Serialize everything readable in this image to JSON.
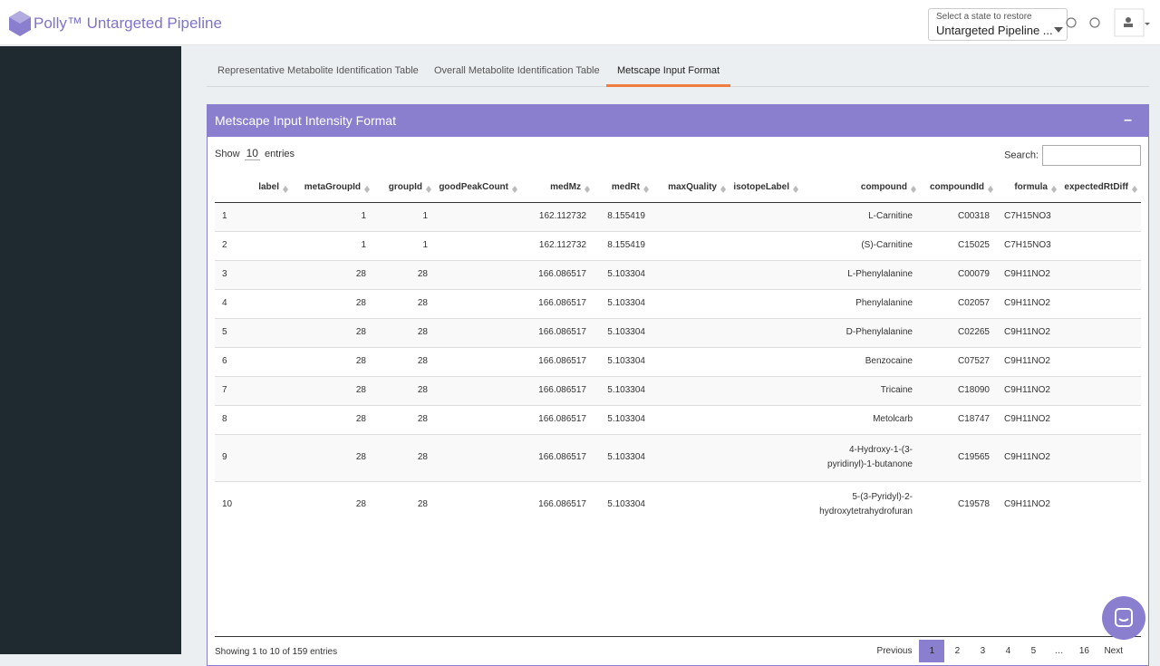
{
  "header": {
    "title": "Polly™ Untargeted Pipeline",
    "state_label": "Select a state to restore",
    "state_value": "Untargeted Pipeline ..."
  },
  "tabs": [
    "Representative Metabolite Identification Table",
    "Overall Metabolite Identification Table",
    "Metscape Input Format"
  ],
  "active_tab": 2,
  "panel": {
    "title": "Metscape Input Intensity Format",
    "collapse": "–"
  },
  "controls": {
    "show": "Show",
    "length": "10",
    "entries": "entries",
    "search": "Search:"
  },
  "table": {
    "columns": [
      null,
      "label",
      "metaGroupId",
      "groupId",
      "goodPeakCount",
      "medMz",
      "medRt",
      "maxQuality",
      "isotopeLabel",
      "compound",
      "compoundId",
      "formula",
      "expectedRtDiff"
    ],
    "rows": [
      [
        "1",
        null,
        "1",
        "1",
        null,
        "162.112732",
        "8.155419",
        null,
        null,
        "L-Carnitine",
        "C00318",
        "C7H15NO3",
        null
      ],
      [
        "2",
        null,
        "1",
        "1",
        null,
        "162.112732",
        "8.155419",
        null,
        null,
        "(S)-Carnitine",
        "C15025",
        "C7H15NO3",
        null
      ],
      [
        "3",
        null,
        "28",
        "28",
        null,
        "166.086517",
        "5.103304",
        null,
        null,
        "L-Phenylalanine",
        "C00079",
        "C9H11NO2",
        null
      ],
      [
        "4",
        null,
        "28",
        "28",
        null,
        "166.086517",
        "5.103304",
        null,
        null,
        "Phenylalanine",
        "C02057",
        "C9H11NO2",
        null
      ],
      [
        "5",
        null,
        "28",
        "28",
        null,
        "166.086517",
        "5.103304",
        null,
        null,
        "D-Phenylalanine",
        "C02265",
        "C9H11NO2",
        null
      ],
      [
        "6",
        null,
        "28",
        "28",
        null,
        "166.086517",
        "5.103304",
        null,
        null,
        "Benzocaine",
        "C07527",
        "C9H11NO2",
        null
      ],
      [
        "7",
        null,
        "28",
        "28",
        null,
        "166.086517",
        "5.103304",
        null,
        null,
        "Tricaine",
        "C18090",
        "C9H11NO2",
        null
      ],
      [
        "8",
        null,
        "28",
        "28",
        null,
        "166.086517",
        "5.103304",
        null,
        null,
        "Metolcarb",
        "C18747",
        "C9H11NO2",
        null
      ],
      [
        "9",
        null,
        "28",
        "28",
        null,
        "166.086517",
        "5.103304",
        null,
        null,
        "4-Hydroxy-1-(3-pyridinyl)-1-butanone",
        "C19565",
        "C9H11NO2",
        null
      ],
      [
        "10",
        null,
        "28",
        "28",
        null,
        "166.086517",
        "5.103304",
        null,
        null,
        "5-(3-Pyridyl)-2-hydroxytetrahydrofuran",
        "C19578",
        "C9H11NO2",
        null
      ]
    ]
  },
  "footer": {
    "info": "Showing 1 to 10 of 159 entries",
    "pages": [
      "Previous",
      "1",
      "2",
      "3",
      "4",
      "5",
      "…",
      "16",
      "Next"
    ],
    "current_page": 1
  }
}
